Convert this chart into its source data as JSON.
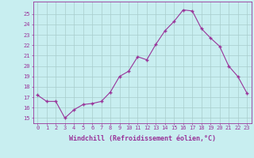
{
  "hours": [
    0,
    1,
    2,
    3,
    4,
    5,
    6,
    7,
    8,
    9,
    10,
    11,
    12,
    13,
    14,
    15,
    16,
    17,
    18,
    19,
    20,
    21,
    22,
    23
  ],
  "values": [
    17.2,
    16.6,
    16.6,
    15.0,
    15.8,
    16.3,
    16.4,
    16.6,
    17.5,
    19.0,
    19.5,
    20.9,
    20.6,
    22.1,
    23.4,
    24.3,
    25.4,
    25.3,
    23.6,
    22.7,
    21.9,
    20.0,
    19.0,
    17.4
  ],
  "line_color": "#993399",
  "marker_color": "#993399",
  "bg_color": "#c8eef0",
  "grid_color": "#a8cccc",
  "xlabel": "Windchill (Refroidissement éolien,°C)",
  "ylim": [
    14.5,
    26.2
  ],
  "yticks": [
    15,
    16,
    17,
    18,
    19,
    20,
    21,
    22,
    23,
    24,
    25
  ],
  "xlabel_color": "#993399",
  "tick_color": "#993399",
  "axis_color": "#993399",
  "font_size_tick": 5.0,
  "font_size_xlabel": 6.0
}
